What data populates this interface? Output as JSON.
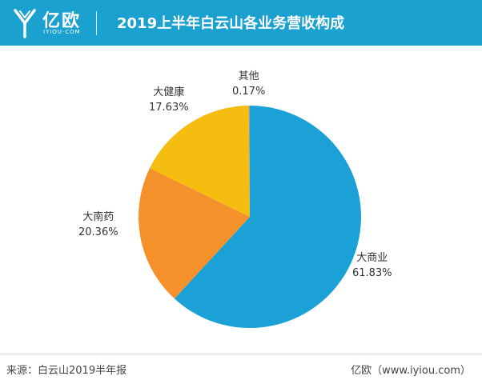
{
  "header": {
    "logo_text": "亿欧",
    "logo_sub": "IYIOU·COM",
    "title": "2019上半年白云山各业务营收构成",
    "bg_color": "#1ba1cf"
  },
  "chart_data": {
    "type": "pie",
    "title": "2019上半年白云山各业务营收构成",
    "slices": [
      {
        "name": "大商业",
        "value": 61.83,
        "label": "61.83%",
        "color": "#1ba1d6"
      },
      {
        "name": "大南药",
        "value": 20.36,
        "label": "20.36%",
        "color": "#f5912a"
      },
      {
        "name": "大健康",
        "value": 17.63,
        "label": "17.63%",
        "color": "#f4bd0f"
      },
      {
        "name": "其他",
        "value": 0.17,
        "label": "0.17%",
        "color": "#9e9e9e"
      }
    ],
    "start": "12 o'clock",
    "direction": "clockwise"
  },
  "footer": {
    "source": "来源：白云山2019半年报",
    "brand": "亿欧（www.iyiou.com）"
  }
}
